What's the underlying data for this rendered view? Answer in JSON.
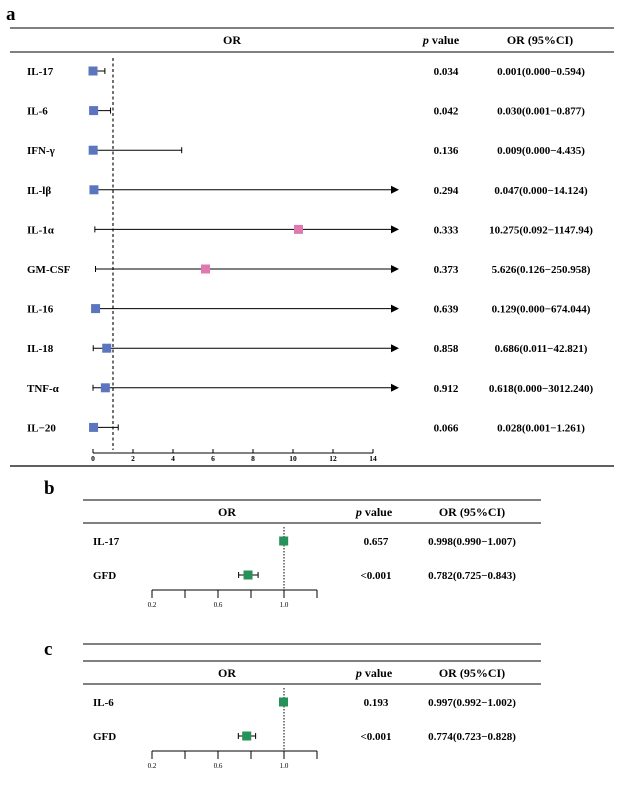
{
  "chart_data": [
    {
      "type": "forest",
      "panel": "a",
      "headers": {
        "or": "OR",
        "p_italic": "p",
        "p_rest": " value",
        "ci": "OR (95%CI)"
      },
      "ref_line": 1,
      "xlim": [
        0,
        14
      ],
      "xticks": [
        "0",
        "2",
        "4",
        "6",
        "8",
        "10",
        "12",
        "14"
      ],
      "rows": [
        {
          "label": "IL-17",
          "or": 0.001,
          "lo": 0.0,
          "hi": 0.594,
          "p": "0.034",
          "ci": "0.001(0.000−0.594)",
          "color": "#5b76bf"
        },
        {
          "label": "IL-6",
          "or": 0.03,
          "lo": 0.001,
          "hi": 0.877,
          "p": "0.042",
          "ci": "0.030(0.001−0.877)",
          "color": "#5b76bf"
        },
        {
          "label": "IFN-γ",
          "or": 0.009,
          "lo": 0.0,
          "hi": 4.435,
          "p": "0.136",
          "ci": "0.009(0.000−4.435)",
          "color": "#5b76bf"
        },
        {
          "label": "IL-lβ",
          "or": 0.047,
          "lo": 0.0,
          "hi": 14.124,
          "p": "0.294",
          "ci": "0.047(0.000−14.124)",
          "color": "#5b76bf"
        },
        {
          "label": "IL-1α",
          "or": 10.275,
          "lo": 0.092,
          "hi": 1147.94,
          "p": "0.333",
          "ci": "10.275(0.092−1147.94)",
          "color": "#de7aaf"
        },
        {
          "label": "GM-CSF",
          "or": 5.626,
          "lo": 0.126,
          "hi": 250.958,
          "p": "0.373",
          "ci": "5.626(0.126−250.958)",
          "color": "#de7aaf"
        },
        {
          "label": "IL-16",
          "or": 0.129,
          "lo": 0.0,
          "hi": 674.044,
          "p": "0.639",
          "ci": "0.129(0.000−674.044)",
          "color": "#5b76bf"
        },
        {
          "label": "IL-18",
          "or": 0.686,
          "lo": 0.011,
          "hi": 42.821,
          "p": "0.858",
          "ci": "0.686(0.011−42.821)",
          "color": "#5b76bf"
        },
        {
          "label": "TNF-α",
          "or": 0.618,
          "lo": 0.0,
          "hi": 3012.24,
          "p": "0.912",
          "ci": "0.618(0.000−3012.240)",
          "color": "#5b76bf"
        },
        {
          "label": "IL−20",
          "or": 0.028,
          "lo": 0.001,
          "hi": 1.261,
          "p": "0.066",
          "ci": "0.028(0.001−1.261)",
          "color": "#5b76bf"
        }
      ]
    },
    {
      "type": "forest",
      "panel": "b",
      "headers": {
        "or": "OR",
        "p_italic": "p",
        "p_rest": " value",
        "ci": "OR (95%CI)"
      },
      "ref_line": 1,
      "xlim": [
        0.2,
        1.2
      ],
      "xticks": [
        "0.2",
        "0.6",
        "1.0"
      ],
      "rows": [
        {
          "label": "IL-17",
          "or": 0.998,
          "lo": 0.99,
          "hi": 1.007,
          "p": "0.657",
          "ci": "0.998(0.990−1.007)",
          "color": "#27915a"
        },
        {
          "label": "GFD",
          "or": 0.782,
          "lo": 0.725,
          "hi": 0.843,
          "p": "<0.001",
          "ci": "0.782(0.725−0.843)",
          "color": "#27915a"
        }
      ]
    },
    {
      "type": "forest",
      "panel": "c",
      "headers": {
        "or": "OR",
        "p_italic": "p",
        "p_rest": " value",
        "ci": "OR (95%CI)"
      },
      "ref_line": 1,
      "xlim": [
        0.2,
        1.2
      ],
      "xticks": [
        "0.2",
        "0.6",
        "1.0"
      ],
      "rows": [
        {
          "label": "IL-6",
          "or": 0.997,
          "lo": 0.992,
          "hi": 1.002,
          "p": "0.193",
          "ci": "0.997(0.992−1.002)",
          "color": "#27915a"
        },
        {
          "label": "GFD",
          "or": 0.774,
          "lo": 0.723,
          "hi": 0.828,
          "p": "<0.001",
          "ci": "0.774(0.723−0.828)",
          "color": "#27915a"
        }
      ]
    }
  ]
}
